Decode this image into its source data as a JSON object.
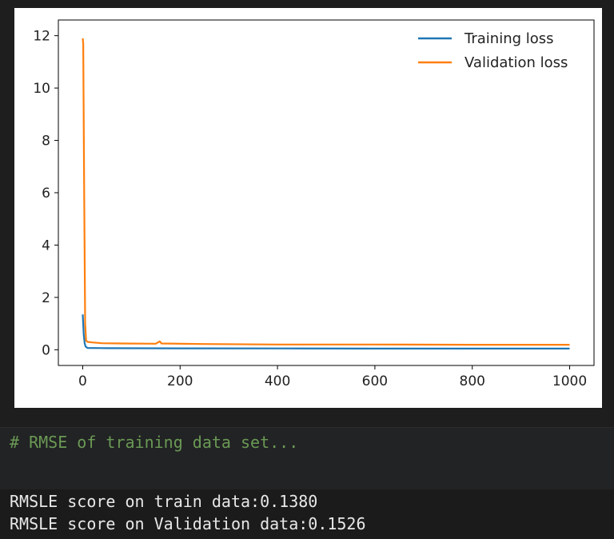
{
  "chart_data": {
    "type": "line",
    "xlim": [
      -50,
      1050
    ],
    "ylim": [
      -0.6,
      12.6
    ],
    "xticks": [
      0,
      200,
      400,
      600,
      800,
      1000
    ],
    "yticks": [
      0,
      2,
      4,
      6,
      8,
      10,
      12
    ],
    "series": [
      {
        "name": "Training loss",
        "color": "#1f77b4",
        "points": [
          [
            0,
            1.35
          ],
          [
            2,
            0.6
          ],
          [
            4,
            0.25
          ],
          [
            6,
            0.12
          ],
          [
            10,
            0.07
          ],
          [
            50,
            0.06
          ],
          [
            200,
            0.055
          ],
          [
            400,
            0.05
          ],
          [
            600,
            0.045
          ],
          [
            800,
            0.045
          ],
          [
            1000,
            0.045
          ]
        ]
      },
      {
        "name": "Validation loss",
        "color": "#ff7f0e",
        "points": [
          [
            0,
            11.9
          ],
          [
            1,
            11.7
          ],
          [
            3,
            6.0
          ],
          [
            5,
            1.0
          ],
          [
            7,
            0.35
          ],
          [
            10,
            0.3
          ],
          [
            20,
            0.28
          ],
          [
            40,
            0.25
          ],
          [
            80,
            0.24
          ],
          [
            150,
            0.23
          ],
          [
            158,
            0.32
          ],
          [
            162,
            0.24
          ],
          [
            250,
            0.22
          ],
          [
            400,
            0.2
          ],
          [
            600,
            0.2
          ],
          [
            800,
            0.19
          ],
          [
            1000,
            0.19
          ]
        ]
      }
    ],
    "legend_position": "top-right",
    "grid": false
  },
  "cell": {
    "comment": "# RMSE of training data set..."
  },
  "output": {
    "line1": "RMSLE score on train data:0.1380",
    "line2": "RMSLE score on Validation data:0.1526"
  }
}
